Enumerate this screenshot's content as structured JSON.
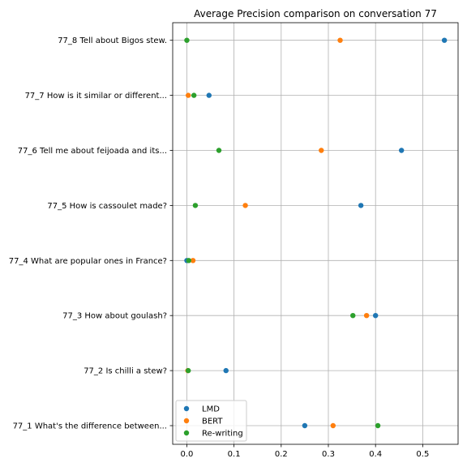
{
  "chart_data": {
    "type": "scatter",
    "title": "Average Precision comparison on conversation 77",
    "xlabel": "",
    "ylabel": "",
    "xlim": [
      -0.03,
      0.575
    ],
    "xticks": [
      0.0,
      0.1,
      0.2,
      0.3,
      0.4,
      0.5
    ],
    "xtick_labels": [
      "0.0",
      "0.1",
      "0.2",
      "0.3",
      "0.4",
      "0.5"
    ],
    "grid": true,
    "legend_position": "lower-left",
    "categories": [
      "77_1 What's the difference between...",
      "77_2 Is chilli a stew?",
      "77_3 How about goulash?",
      "77_4 What are popular ones in France?",
      "77_5 How is cassoulet made?",
      "77_6 Tell me about feijoada and its...",
      "77_7 How is it similar or different...",
      "77_8 Tell about Bigos stew."
    ],
    "series": [
      {
        "name": "LMD",
        "color": "#1f77b4",
        "values": [
          0.25,
          0.083,
          0.4,
          0.0,
          0.369,
          0.455,
          0.047,
          0.546
        ]
      },
      {
        "name": "BERT",
        "color": "#ff7f0e",
        "values": [
          0.31,
          0.002,
          0.381,
          0.013,
          0.124,
          0.285,
          0.003,
          0.325
        ]
      },
      {
        "name": "Re-writing",
        "color": "#2ca02c",
        "values": [
          0.405,
          0.003,
          0.352,
          0.004,
          0.018,
          0.068,
          0.015,
          0.0
        ]
      }
    ]
  }
}
